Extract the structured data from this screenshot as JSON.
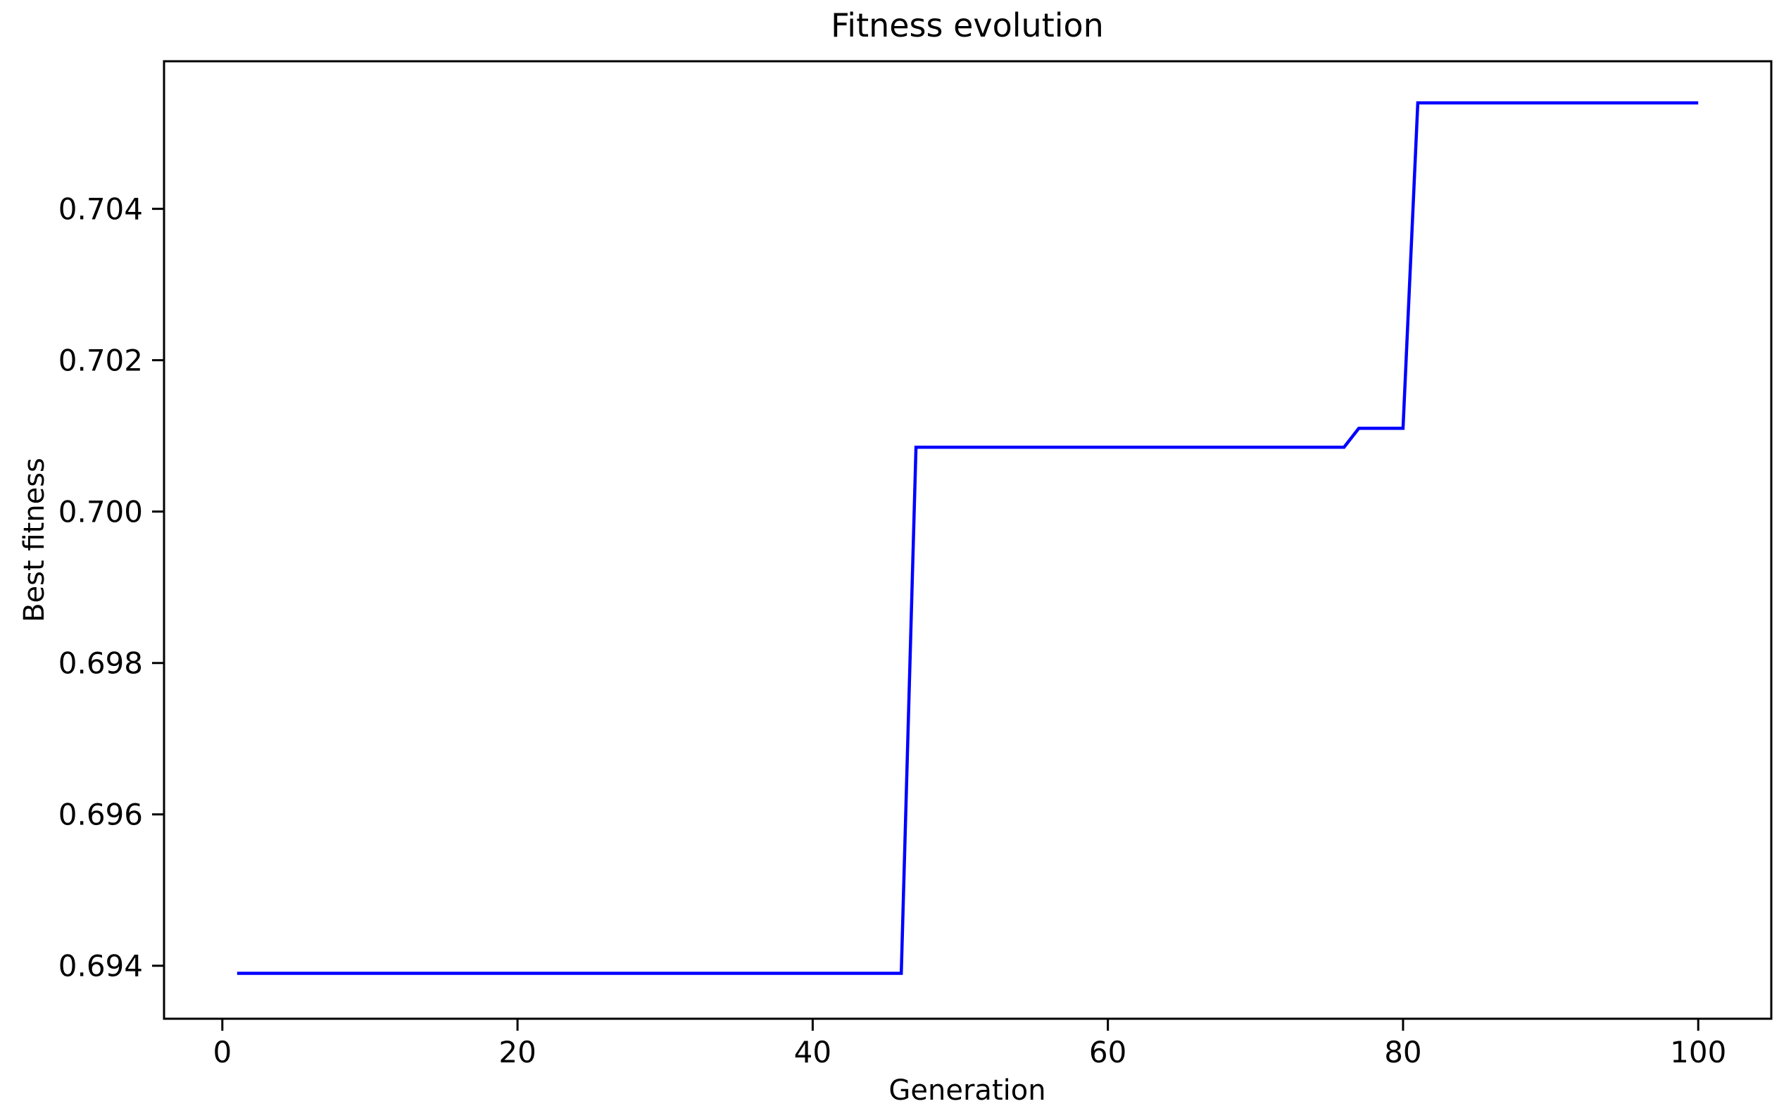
{
  "figure": {
    "background_color": "#ffffff",
    "title": "Fitness evolution"
  },
  "chart_data": {
    "type": "line",
    "title": "Fitness evolution",
    "xlabel": "Generation",
    "ylabel": "Best fitness",
    "line_color": "#0000ff",
    "axis_color": "#000000",
    "grid": false,
    "legend": false,
    "xlim": [
      -3.95,
      104.95
    ],
    "ylim": [
      0.6933,
      0.70595
    ],
    "x_ticks": [
      0,
      20,
      40,
      60,
      80,
      100
    ],
    "x_tick_labels": [
      "0",
      "20",
      "40",
      "60",
      "80",
      "100"
    ],
    "y_ticks": [
      0.694,
      0.696,
      0.698,
      0.7,
      0.702,
      0.704
    ],
    "y_tick_labels": [
      "0.694",
      "0.696",
      "0.698",
      "0.700",
      "0.702",
      "0.704"
    ],
    "series": [
      {
        "name": "Best fitness",
        "shape": "step-like polyline; breakpoints of flat segments listed",
        "x": [
          1,
          46,
          47,
          76,
          77,
          80,
          81,
          100
        ],
        "y": [
          0.6939,
          0.6939,
          0.70085,
          0.70085,
          0.7011,
          0.7011,
          0.7054,
          0.7054
        ]
      }
    ],
    "segments_summary": [
      {
        "generations": "1-46",
        "best_fitness": 0.6939
      },
      {
        "generations": "47-76",
        "best_fitness": 0.70085
      },
      {
        "generations": "77-80",
        "best_fitness": 0.7011
      },
      {
        "generations": "81-100",
        "best_fitness": 0.7054
      }
    ]
  }
}
